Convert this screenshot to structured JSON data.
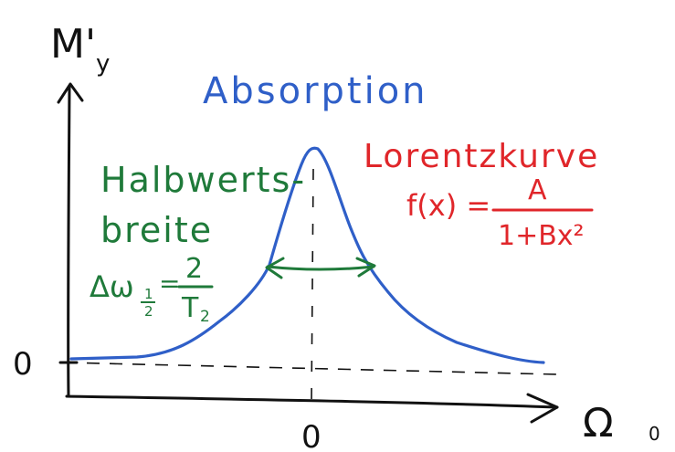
{
  "axes": {
    "y_label": "M'",
    "y_label_sub": "y",
    "x_label": "Ω",
    "x_label_sub": "0",
    "origin_y_tick": "0",
    "origin_x_tick": "0"
  },
  "title": "Absorption",
  "lorentz": {
    "heading": "Lorentzkurve",
    "formula_lhs": "f(x) =",
    "numerator": "A",
    "denominator": "1+Bx²"
  },
  "halfwidth": {
    "line1": "Halbwerts-",
    "line2": "breite",
    "formula_lhs": "Δω",
    "formula_sub_num": "1",
    "formula_sub_den": "2",
    "formula_eq": "=",
    "numerator": "2",
    "denominator": "T",
    "denominator_sub": "2"
  },
  "colors": {
    "ink": "#111111",
    "curve": "#2f5fc8",
    "lorentz": "#e0262a",
    "halfwidth": "#1f7a3a"
  }
}
